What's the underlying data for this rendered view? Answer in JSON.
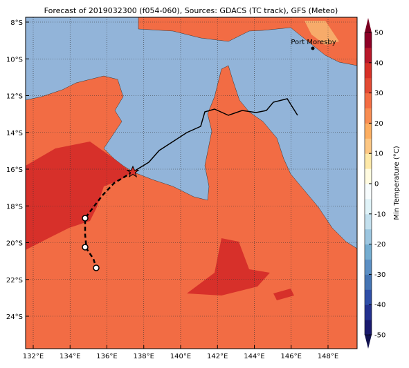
{
  "title": "Forecast of 2019032300 (f054-060), Sources: GDACS (TC track), GFS (Meteo)",
  "x_axis": {
    "ticks": [
      "132°E",
      "134°E",
      "136°E",
      "138°E",
      "140°E",
      "142°E",
      "144°E",
      "146°E",
      "148°E"
    ]
  },
  "y_axis": {
    "ticks": [
      "8°S",
      "10°S",
      "12°S",
      "14°S",
      "16°S",
      "18°S",
      "20°S",
      "22°S",
      "24°S"
    ]
  },
  "places": [
    {
      "label": "Port Moresby"
    }
  ],
  "colorbar": {
    "label": "Min Temperature (°C)",
    "ticks": [
      50,
      40,
      30,
      20,
      10,
      0,
      -10,
      -20,
      -30,
      -40,
      -50
    ]
  }
}
